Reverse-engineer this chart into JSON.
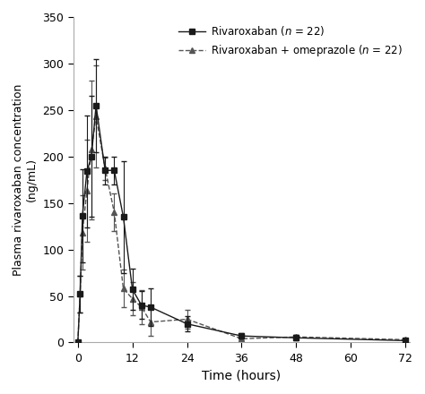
{
  "rivaroxaban_time": [
    0,
    0.5,
    1,
    2,
    3,
    4,
    6,
    8,
    10,
    12,
    14,
    16,
    24,
    36,
    48,
    72
  ],
  "rivaroxaban_conc": [
    0,
    52,
    136,
    184,
    200,
    255,
    185,
    185,
    135,
    57,
    40,
    38,
    20,
    7,
    5,
    2
  ],
  "rivaroxaban_sd_upper": [
    0,
    20,
    50,
    60,
    65,
    50,
    15,
    15,
    60,
    22,
    15,
    20,
    8,
    3,
    3,
    1
  ],
  "rivaroxaban_sd_lower": [
    0,
    20,
    50,
    60,
    65,
    50,
    15,
    15,
    60,
    22,
    15,
    20,
    8,
    3,
    3,
    1
  ],
  "omeprazole_time": [
    0,
    0.5,
    1,
    2,
    3,
    4,
    6,
    8,
    10,
    12,
    14,
    16,
    24,
    36,
    48,
    72
  ],
  "omeprazole_conc": [
    0,
    52,
    118,
    163,
    207,
    243,
    187,
    140,
    58,
    47,
    38,
    22,
    25,
    4,
    6,
    3
  ],
  "omeprazole_sd_upper": [
    0,
    20,
    40,
    55,
    75,
    55,
    12,
    20,
    20,
    18,
    18,
    15,
    10,
    2,
    2,
    1
  ],
  "omeprazole_sd_lower": [
    0,
    20,
    40,
    55,
    75,
    55,
    12,
    20,
    20,
    18,
    18,
    15,
    10,
    2,
    2,
    1
  ],
  "xlabel": "Time (hours)",
  "ylabel": "Plasma rivaroxaban concentration\n(ng/mL)",
  "ylim": [
    0,
    350
  ],
  "xlim": [
    -1,
    73
  ],
  "yticks": [
    0,
    50,
    100,
    150,
    200,
    250,
    300,
    350
  ],
  "xticks": [
    0,
    12,
    24,
    36,
    48,
    60,
    72
  ],
  "color": "#1a1a1a",
  "background": "#ffffff"
}
